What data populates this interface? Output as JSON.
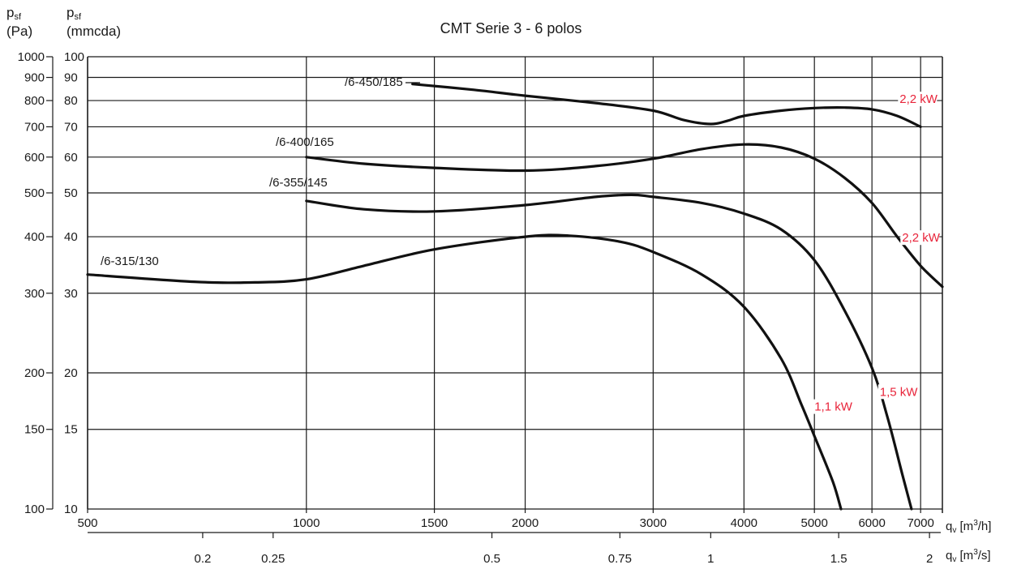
{
  "chart_data": {
    "type": "line",
    "title": "CMT Serie 3 - 6 polos",
    "y_axis_left": {
      "symbol": "p",
      "sub": "sf",
      "unit": "(Pa)",
      "ticks": [
        100,
        150,
        200,
        300,
        400,
        500,
        600,
        700,
        800,
        900,
        1000
      ],
      "scale": "log",
      "range": [
        100,
        1000
      ]
    },
    "y_axis_inner": {
      "symbol": "p",
      "sub": "sf",
      "unit": "(mmcda)",
      "ticks": [
        10,
        15,
        20,
        30,
        40,
        50,
        60,
        70,
        80,
        90,
        100
      ],
      "scale": "log",
      "range": [
        10,
        100
      ]
    },
    "x_axis": {
      "symbol": "q",
      "sub": "v",
      "unit_prefix": "[m",
      "unit_exp": "3",
      "unit_suffix": "/h]",
      "ticks": [
        500,
        1000,
        1500,
        2000,
        3000,
        4000,
        5000,
        6000,
        7000
      ],
      "scale": "log",
      "range": [
        500,
        7500
      ]
    },
    "x_axis_secondary": {
      "symbol": "q",
      "sub": "v",
      "unit_prefix": "[m",
      "unit_exp": "3",
      "unit_suffix": "/s]",
      "ticks": [
        0.2,
        0.25,
        0.5,
        0.75,
        1,
        1.5,
        2
      ]
    },
    "grid": true,
    "series": [
      {
        "name": "/6-315/130",
        "label": "/6-315/130",
        "power": "1,1 kW",
        "x": [
          500,
          700,
          850,
          1000,
          1200,
          1500,
          2000,
          2300,
          2700,
          3000,
          3500,
          4000,
          4500,
          4800,
          5000,
          5300,
          5440
        ],
        "y": [
          330,
          318,
          317,
          322,
          345,
          375,
          400,
          402,
          390,
          370,
          330,
          280,
          215,
          170,
          145,
          115,
          100
        ]
      },
      {
        "name": "/6-355/145",
        "label": "/6-355/145",
        "power": "1,5 kW",
        "x": [
          1000,
          1200,
          1500,
          2000,
          2500,
          2800,
          3000,
          3500,
          4000,
          4500,
          5000,
          5500,
          6000,
          6300,
          6600,
          6800
        ],
        "y": [
          480,
          460,
          455,
          470,
          490,
          495,
          490,
          475,
          450,
          415,
          355,
          275,
          205,
          160,
          120,
          100
        ]
      },
      {
        "name": "/6-400/165",
        "label": "/6-400/165",
        "power": "2,2 kW",
        "x": [
          1000,
          1200,
          1500,
          2000,
          2500,
          3000,
          3500,
          4000,
          4500,
          5000,
          5500,
          6000,
          6500,
          7000,
          7500
        ],
        "y": [
          600,
          580,
          568,
          560,
          573,
          595,
          625,
          640,
          630,
          595,
          540,
          475,
          400,
          345,
          310
        ]
      },
      {
        "name": "/6-450/185",
        "label": "/6-450/185",
        "power": "2,2 kW",
        "x": [
          1400,
          1700,
          2000,
          2500,
          3000,
          3300,
          3600,
          3800,
          4000,
          4500,
          5000,
          5500,
          6000,
          6500,
          7000
        ],
        "y": [
          870,
          845,
          820,
          790,
          760,
          725,
          710,
          722,
          740,
          760,
          770,
          772,
          765,
          740,
          700
        ]
      }
    ],
    "power_labels": [
      {
        "text": "1,1 kW",
        "x": 5000,
        "y": 165,
        "color": "#e8243a"
      },
      {
        "text": "1,5 kW",
        "x": 6150,
        "y": 178,
        "color": "#e8243a"
      },
      {
        "text": "2,2 kW",
        "x": 6600,
        "y": 390,
        "color": "#e8243a"
      },
      {
        "text": "2,2 kW",
        "x": 6550,
        "y": 790,
        "color": "#e8243a"
      }
    ],
    "colors": {
      "curve": "#111111",
      "grid": "#1a1a1a",
      "power": "#e8243a"
    }
  }
}
